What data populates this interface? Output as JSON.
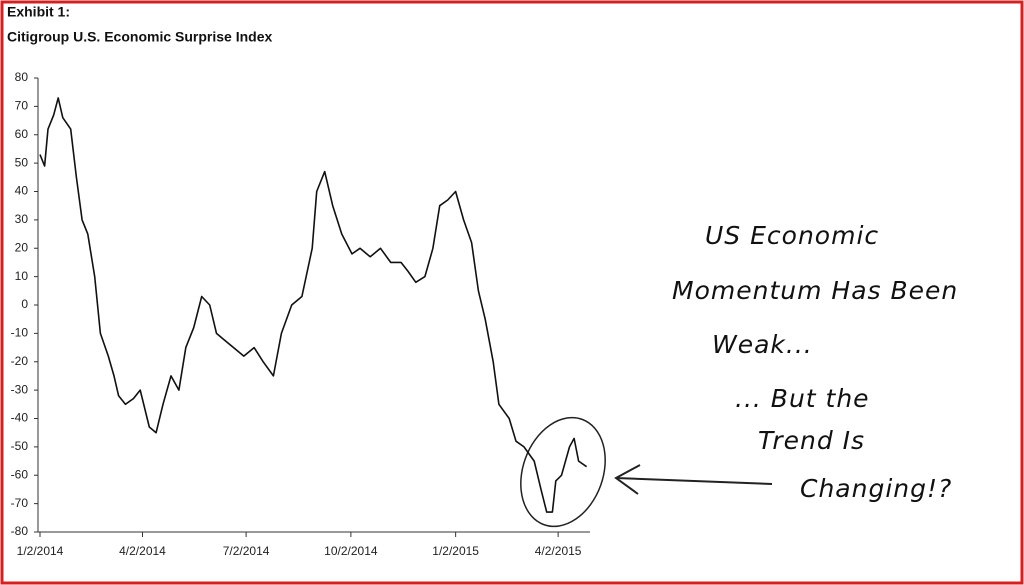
{
  "chart_data": {
    "type": "line",
    "title": "Citigroup U.S. Economic Surprise Index",
    "subtitle": "Exhibit 1:",
    "annotations": [
      "US Economic",
      "Momentum Has Been",
      "Weak...",
      "... But the",
      "Trend Is",
      "Changing!?"
    ],
    "x": [
      "2014-01-02",
      "2014-01-06",
      "2014-01-09",
      "2014-01-14",
      "2014-01-18",
      "2014-01-22",
      "2014-01-29",
      "2014-02-03",
      "2014-02-08",
      "2014-02-13",
      "2014-02-19",
      "2014-02-24",
      "2014-03-03",
      "2014-03-08",
      "2014-03-12",
      "2014-03-18",
      "2014-03-25",
      "2014-03-31",
      "2014-04-08",
      "2014-04-14",
      "2014-04-20",
      "2014-04-27",
      "2014-05-04",
      "2014-05-10",
      "2014-05-17",
      "2014-05-24",
      "2014-05-31",
      "2014-06-06",
      "2014-06-12",
      "2014-06-21",
      "2014-06-30",
      "2014-07-09",
      "2014-07-17",
      "2014-07-26",
      "2014-08-02",
      "2014-08-11",
      "2014-08-20",
      "2014-08-29",
      "2014-09-02",
      "2014-09-09",
      "2014-09-16",
      "2014-09-24",
      "2014-10-03",
      "2014-10-10",
      "2014-10-19",
      "2014-10-28",
      "2014-11-06",
      "2014-11-15",
      "2014-11-21",
      "2014-11-28",
      "2014-12-06",
      "2014-12-13",
      "2014-12-19",
      "2014-12-26",
      "2015-01-02",
      "2015-01-09",
      "2015-01-16",
      "2015-01-22",
      "2015-01-28",
      "2015-02-04",
      "2015-02-09",
      "2015-02-18",
      "2015-02-24",
      "2015-03-03",
      "2015-03-12",
      "2015-03-18",
      "2015-03-23",
      "2015-03-28",
      "2015-03-31",
      "2015-04-05",
      "2015-04-12",
      "2015-04-16",
      "2015-04-20",
      "2015-04-27"
    ],
    "series": [
      {
        "name": "Citigroup U.S. Economic Surprise Index",
        "color": "#111111",
        "values": [
          53,
          49,
          62,
          67,
          73,
          66,
          62,
          45,
          30,
          25,
          10,
          -10,
          -18,
          -25,
          -32,
          -35,
          -33,
          -30,
          -43,
          -45,
          -35,
          -25,
          -30,
          -15,
          -8,
          3,
          0,
          -10,
          -12,
          -15,
          -18,
          -15,
          -20,
          -25,
          -10,
          0,
          3,
          20,
          40,
          47,
          35,
          25,
          18,
          20,
          17,
          20,
          15,
          15,
          12,
          8,
          10,
          20,
          35,
          37,
          40,
          30,
          22,
          5,
          -5,
          -20,
          -35,
          -40,
          -48,
          -50,
          -55,
          -65,
          -73,
          -73,
          -62,
          -60,
          -50,
          -47,
          -55,
          -57
        ]
      }
    ],
    "xlim": [
      "2014-01-02",
      "2015-04-30"
    ],
    "xticks": [
      {
        "value": "2014-01-02",
        "label": "1/2/2014"
      },
      {
        "value": "2014-04-02",
        "label": "4/2/2014"
      },
      {
        "value": "2014-07-02",
        "label": "7/2/2014"
      },
      {
        "value": "2014-10-02",
        "label": "10/2/2014"
      },
      {
        "value": "2015-01-02",
        "label": "1/2/2015"
      },
      {
        "value": "2015-04-02",
        "label": "4/2/2015"
      }
    ],
    "ylim": [
      -80,
      80
    ],
    "yticks": [
      -80,
      -70,
      -60,
      -50,
      -40,
      -30,
      -20,
      -10,
      0,
      10,
      20,
      30,
      40,
      50,
      60,
      70,
      80
    ],
    "grid": false
  }
}
